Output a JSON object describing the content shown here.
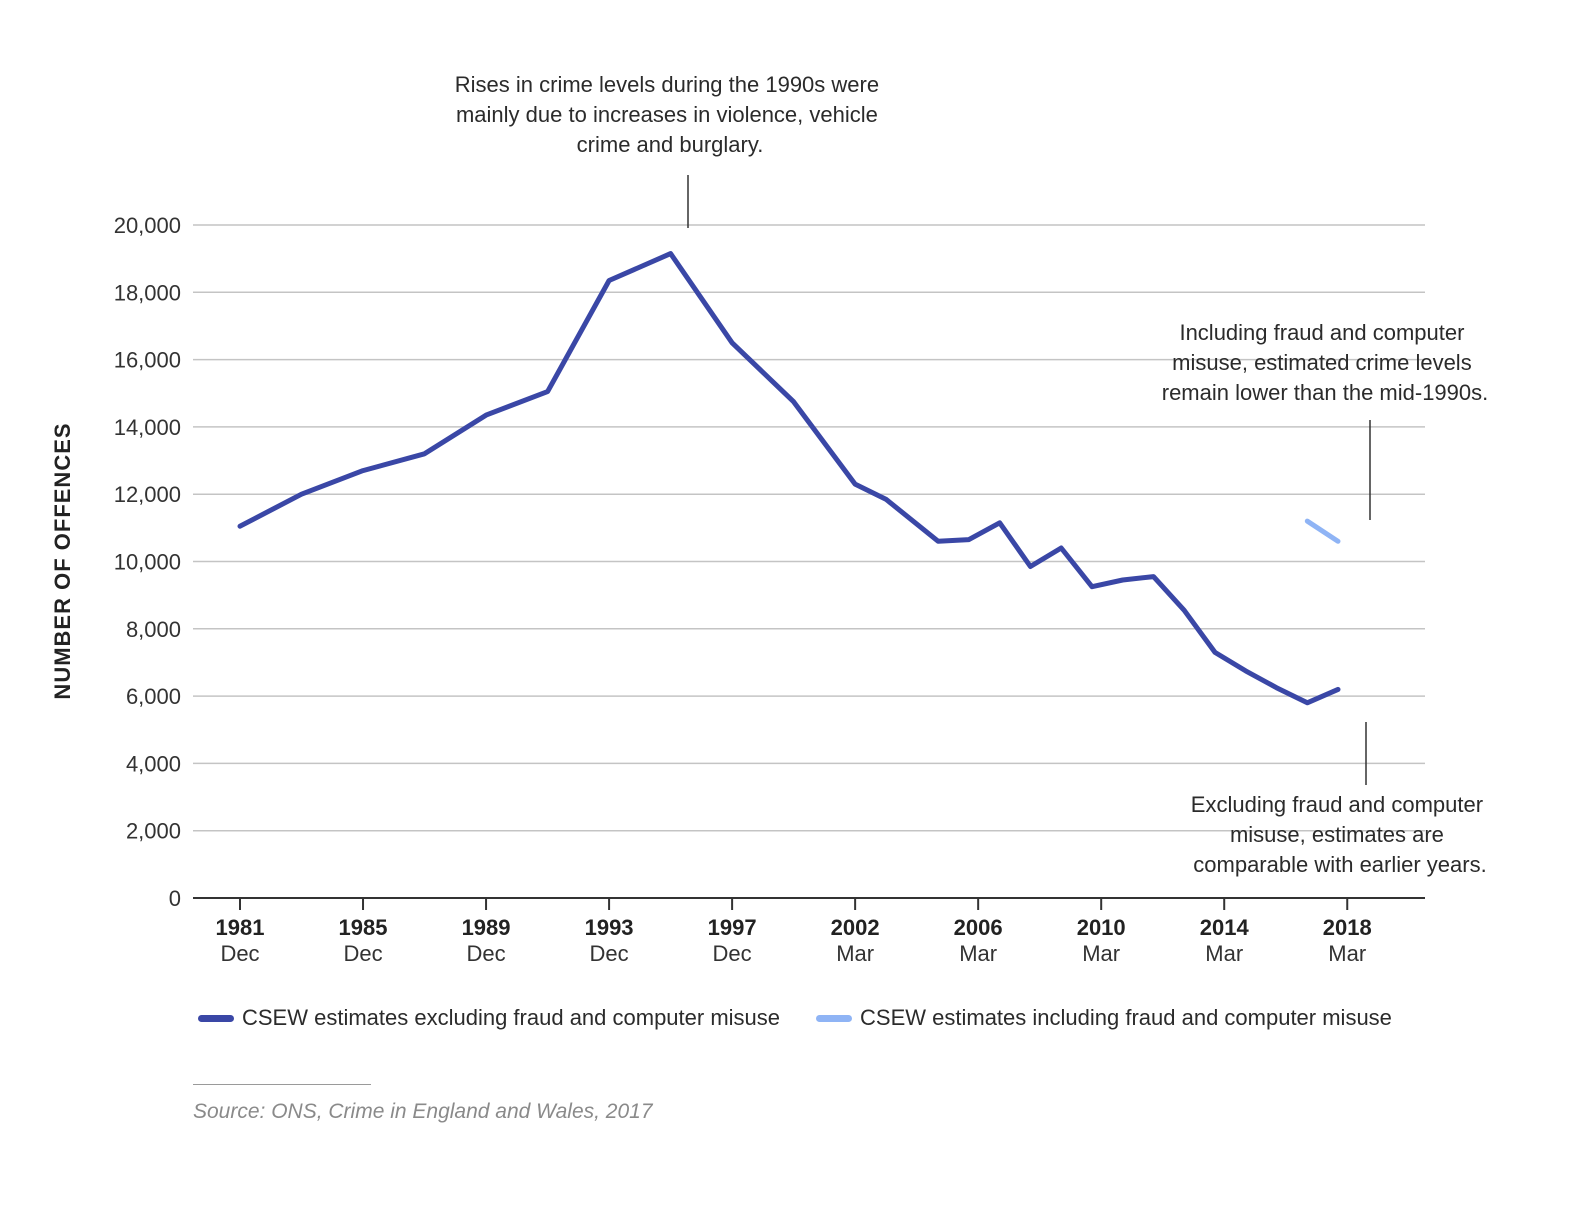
{
  "chart_data": {
    "type": "line",
    "ylabel": "NUMBER OF OFFENCES",
    "ylim": [
      0,
      20000
    ],
    "yticks": [
      {
        "value": 0,
        "label": "0"
      },
      {
        "value": 2000,
        "label": "2,000"
      },
      {
        "value": 4000,
        "label": "4,000"
      },
      {
        "value": 6000,
        "label": "6,000"
      },
      {
        "value": 8000,
        "label": "8,000"
      },
      {
        "value": 10000,
        "label": "10,000"
      },
      {
        "value": 12000,
        "label": "12,000"
      },
      {
        "value": 14000,
        "label": "14,000"
      },
      {
        "value": 16000,
        "label": "16,000"
      },
      {
        "value": 18000,
        "label": "18,000"
      },
      {
        "value": 20000,
        "label": "20,000"
      }
    ],
    "xlim": [
      1981,
      2018
    ],
    "xticks": [
      {
        "value": 1981,
        "year": "1981",
        "sub": "Dec"
      },
      {
        "value": 1985,
        "year": "1985",
        "sub": "Dec"
      },
      {
        "value": 1989,
        "year": "1989",
        "sub": "Dec"
      },
      {
        "value": 1993,
        "year": "1993",
        "sub": "Dec"
      },
      {
        "value": 1997,
        "year": "1997",
        "sub": "Dec"
      },
      {
        "value": 2001,
        "year": "2002",
        "sub": "Mar"
      },
      {
        "value": 2005,
        "year": "2006",
        "sub": "Mar"
      },
      {
        "value": 2009,
        "year": "2010",
        "sub": "Mar"
      },
      {
        "value": 2013,
        "year": "2014",
        "sub": "Mar"
      },
      {
        "value": 2017,
        "year": "2018",
        "sub": "Mar"
      }
    ],
    "series": [
      {
        "name": "CSEW estimates excluding fraud and computer misuse",
        "color": "#3a47a6",
        "x": [
          1981,
          1983,
          1985,
          1987,
          1989,
          1991,
          1993,
          1995,
          1997,
          1999,
          2001,
          2002,
          2003.7,
          2004.7,
          2005.7,
          2006.7,
          2007.7,
          2008.7,
          2009.7,
          2010.7,
          2011.7,
          2012.7,
          2013.7,
          2014.7,
          2015.7,
          2016.7
        ],
        "values": [
          11050,
          12000,
          12700,
          13200,
          14350,
          15050,
          18350,
          19150,
          16500,
          14750,
          12300,
          11850,
          10600,
          10650,
          11150,
          9850,
          10400,
          9250,
          9450,
          9550,
          8550,
          7300,
          6750,
          6250,
          5800,
          6200
        ]
      },
      {
        "name": "CSEW estimates including fraud and computer misuse",
        "color": "#8fb4f5",
        "x": [
          2015.7,
          2016.7
        ],
        "values": [
          11200,
          10600
        ]
      }
    ],
    "annotations": [
      {
        "text": [
          "Rises in crime levels during the 1990s were",
          "mainly due to increases in violence, vehicle",
          "crime and burglary."
        ]
      },
      {
        "text": [
          "Including fraud and computer",
          "misuse, estimated crime levels",
          "remain lower than the mid-1990s."
        ]
      },
      {
        "text": [
          "Excluding fraud and computer",
          "misuse, estimates are",
          "comparable with earlier years."
        ]
      }
    ]
  },
  "source": "Source: ONS, Crime in England and Wales, 2017"
}
